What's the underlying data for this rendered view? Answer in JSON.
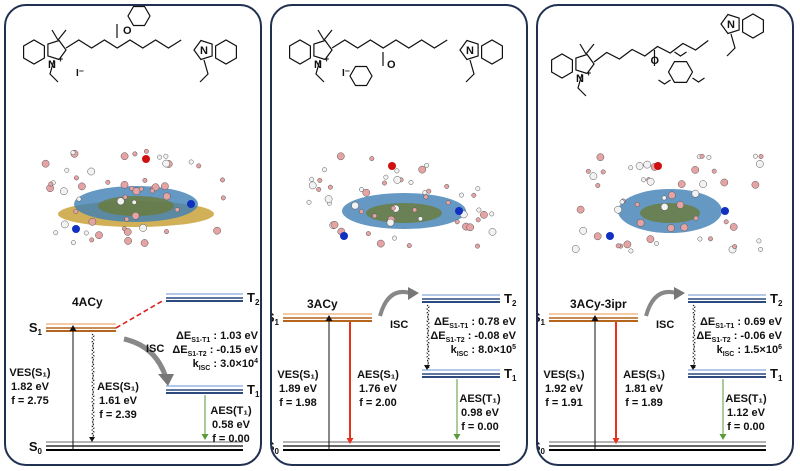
{
  "panels": [
    {
      "name": "4ACy",
      "structure": {
        "n_label": "N",
        "charge": "+",
        "counterion": "I⁻",
        "o_label": "O"
      },
      "states": {
        "s1": "S",
        "s1_sub": "1",
        "s0": "S",
        "s0_sub": "0",
        "t1": "T",
        "t1_sub": "1",
        "t2": "T",
        "t2_sub": "2"
      },
      "isc_label": "ISC",
      "ves": {
        "label": "VES(S₁)",
        "energy": "1.82 eV",
        "f": "f = 2.75"
      },
      "aes_s1": {
        "label": "AES(S₁)",
        "energy": "1.61 eV",
        "f": "f = 2.39"
      },
      "aes_t1": {
        "label": "AES(T₁)",
        "energy": "0.58 eV",
        "f": "f = 0.00"
      },
      "de_s1t1": {
        "label": "ΔE",
        "sub": "S1-T1",
        "value": " : 1.03 eV"
      },
      "de_s1t2": {
        "label": "ΔE",
        "sub": "S1-T2",
        "value": " : -0.15 eV"
      },
      "k_isc": {
        "label": "k",
        "sub": "ISC",
        "value": " : 3.0×10",
        "exp": "4"
      },
      "s1_emission": "nonradiative-wavy",
      "colors": {
        "ellipse": "#3f7fb5",
        "core": "#6b7a3a",
        "belt": "#c9a23a"
      }
    },
    {
      "name": "3ACy",
      "structure": {
        "n_label": "N",
        "charge": "+",
        "counterion": "I⁻",
        "o_label": "O"
      },
      "states": {
        "s1": "S",
        "s1_sub": "1",
        "s0": "S",
        "s0_sub": "0",
        "t1": "T",
        "t1_sub": "1",
        "t2": "T",
        "t2_sub": "2"
      },
      "isc_label": "ISC",
      "ves": {
        "label": "VES(S₁)",
        "energy": "1.89 eV",
        "f": "f = 1.98"
      },
      "aes_s1": {
        "label": "AES(S₁)",
        "energy": "1.76 eV",
        "f": "f = 2.00"
      },
      "aes_t1": {
        "label": "AES(T₁)",
        "energy": "0.98 eV",
        "f": "f = 0.00"
      },
      "de_s1t1": {
        "label": "ΔE",
        "sub": "S1-T1",
        "value": " : 0.78 eV"
      },
      "de_s1t2": {
        "label": "ΔE",
        "sub": "S1-T2",
        "value": " : -0.08 eV"
      },
      "k_isc": {
        "label": "k",
        "sub": "ISC",
        "value": " : 8.0×10",
        "exp": "5"
      },
      "s1_emission": "radiative-red",
      "colors": {
        "ellipse": "#3f7fb5",
        "core": "#6b7a3a",
        "belt": ""
      }
    },
    {
      "name": "3ACy-3ipr",
      "structure": {
        "n_label": "N",
        "charge": "+",
        "counterion": "",
        "o_label": "O"
      },
      "states": {
        "s1": "S",
        "s1_sub": "1",
        "s0": "S",
        "s0_sub": "0",
        "t1": "T",
        "t1_sub": "1",
        "t2": "T",
        "t2_sub": "2"
      },
      "isc_label": "ISC",
      "ves": {
        "label": "VES(S₁)",
        "energy": "1.92 eV",
        "f": "f = 1.91"
      },
      "aes_s1": {
        "label": "AES(S₁)",
        "energy": "1.81 eV",
        "f": "f = 1.89"
      },
      "aes_t1": {
        "label": "AES(T₁)",
        "energy": "1.12 eV",
        "f": "f = 0.00"
      },
      "de_s1t1": {
        "label": "ΔE",
        "sub": "S1-T1",
        "value": " : 0.69 eV"
      },
      "de_s1t2": {
        "label": "ΔE",
        "sub": "S1-T2",
        "value": " : -0.06 eV"
      },
      "k_isc": {
        "label": "k",
        "sub": "ISC",
        "value": " : 1.5×10",
        "exp": "6"
      },
      "s1_emission": "radiative-red",
      "colors": {
        "ellipse": "#3f7fb5",
        "core": "#6b7a3a",
        "belt": ""
      }
    }
  ],
  "level_colors": {
    "singlet": "#b5651d",
    "singlet_light": "#f2b98a",
    "triplet": "#2c4a80",
    "triplet_light": "#9bb6e0",
    "ground": "#111111",
    "emission": "#e8321e",
    "t1_emission": "#5a9a3a",
    "isc_dashed": "#e02020"
  }
}
